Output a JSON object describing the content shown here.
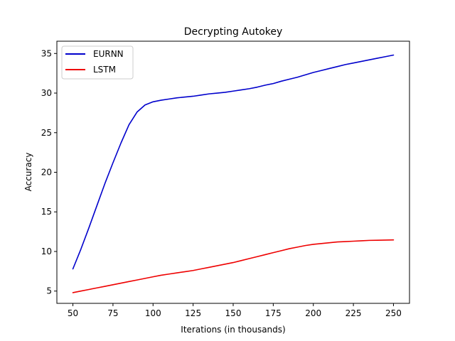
{
  "chart_data": {
    "type": "line",
    "title": "Decrypting Autokey",
    "xlabel": "Iterations (in thousands)",
    "ylabel": "Accuracy",
    "xlim": [
      40,
      260
    ],
    "ylim": [
      3.45,
      36.55
    ],
    "xticks": [
      50,
      75,
      100,
      125,
      150,
      175,
      200,
      225,
      250
    ],
    "yticks": [
      5,
      10,
      15,
      20,
      25,
      30,
      35
    ],
    "grid": false,
    "legend_position": "top-left",
    "series": [
      {
        "name": "EURNN",
        "color": "#0000cc",
        "x": [
          50,
          55,
          60,
          65,
          70,
          75,
          80,
          85,
          90,
          95,
          100,
          105,
          110,
          115,
          120,
          125,
          130,
          135,
          140,
          145,
          150,
          155,
          160,
          165,
          170,
          175,
          180,
          185,
          190,
          195,
          200,
          205,
          210,
          215,
          220,
          225,
          230,
          235,
          240,
          245,
          250
        ],
        "y": [
          7.8,
          10.3,
          13.0,
          15.8,
          18.6,
          21.2,
          23.7,
          26.0,
          27.6,
          28.5,
          28.9,
          29.1,
          29.25,
          29.4,
          29.5,
          29.6,
          29.75,
          29.9,
          30.0,
          30.1,
          30.25,
          30.4,
          30.55,
          30.75,
          31.0,
          31.2,
          31.5,
          31.75,
          32.0,
          32.3,
          32.6,
          32.85,
          33.1,
          33.35,
          33.6,
          33.8,
          34.0,
          34.2,
          34.4,
          34.6,
          34.8
        ]
      },
      {
        "name": "LSTM",
        "color": "#ee0000",
        "x": [
          50,
          55,
          60,
          65,
          70,
          75,
          80,
          85,
          90,
          95,
          100,
          105,
          110,
          115,
          120,
          125,
          130,
          135,
          140,
          145,
          150,
          155,
          160,
          165,
          170,
          175,
          180,
          185,
          190,
          195,
          200,
          205,
          210,
          215,
          220,
          225,
          230,
          235,
          240,
          245,
          250
        ],
        "y": [
          4.8,
          5.0,
          5.2,
          5.4,
          5.6,
          5.8,
          6.0,
          6.2,
          6.4,
          6.6,
          6.8,
          7.0,
          7.15,
          7.3,
          7.45,
          7.6,
          7.8,
          8.0,
          8.2,
          8.4,
          8.6,
          8.85,
          9.1,
          9.35,
          9.6,
          9.85,
          10.1,
          10.35,
          10.55,
          10.75,
          10.9,
          11.0,
          11.1,
          11.2,
          11.25,
          11.3,
          11.35,
          11.4,
          11.42,
          11.44,
          11.46
        ]
      }
    ]
  }
}
